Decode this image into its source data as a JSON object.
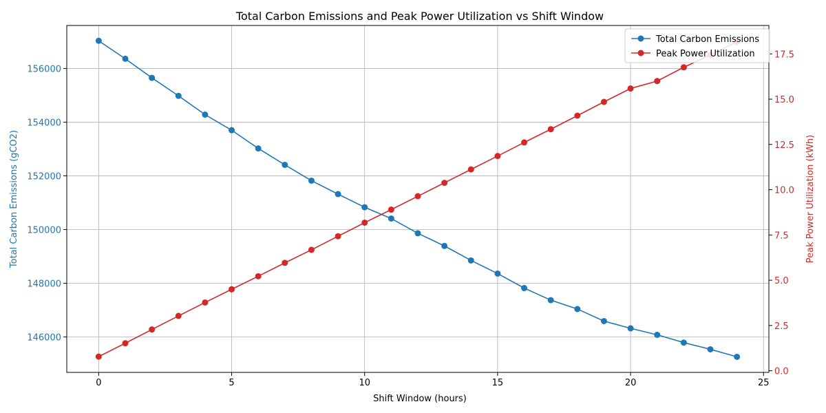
{
  "chart_data": {
    "type": "line",
    "title": "Total Carbon Emissions and Peak Power Utilization vs Shift Window",
    "xlabel": "Shift Window (hours)",
    "ylabel_left": "Total Carbon Emissions (gCO2)",
    "ylabel_right": "Peak Power Utilization (kWh)",
    "grid": true,
    "legend_position": "top-right",
    "x": [
      0,
      1,
      2,
      3,
      4,
      5,
      6,
      7,
      8,
      9,
      10,
      11,
      12,
      13,
      14,
      15,
      16,
      17,
      18,
      19,
      20,
      21,
      22,
      23,
      24
    ],
    "xlim": [
      -1.2,
      25.2
    ],
    "x_ticks": [
      0,
      5,
      10,
      15,
      20,
      25
    ],
    "x_tick_labels": [
      "0",
      "5",
      "10",
      "15",
      "20",
      "25"
    ],
    "ylim_left": [
      144680,
      157600
    ],
    "y_ticks_left": [
      146000,
      148000,
      150000,
      152000,
      154000,
      156000
    ],
    "y_tick_labels_left": [
      "146000",
      "148000",
      "150000",
      "152000",
      "154000",
      "156000"
    ],
    "ylim_right": [
      -0.09,
      19.07
    ],
    "y_ticks_right": [
      0.0,
      2.5,
      5.0,
      7.5,
      10.0,
      12.5,
      15.0,
      17.5
    ],
    "y_tick_labels_right": [
      "0.0",
      "2.5",
      "5.0",
      "7.5",
      "10.0",
      "12.5",
      "15.0",
      "17.5"
    ],
    "series": [
      {
        "name": "Total Carbon Emissions",
        "axis": "left",
        "color": "#1f77b4",
        "values": [
          157030,
          156360,
          155650,
          154980,
          154280,
          153700,
          153020,
          152410,
          151820,
          151320,
          150830,
          150410,
          149860,
          149390,
          148850,
          148360,
          147820,
          147370,
          147040,
          146590,
          146320,
          146080,
          145790,
          145540,
          145260
        ]
      },
      {
        "name": "Peak Power Utilization",
        "axis": "right",
        "color": "#d62728",
        "values": [
          0.78,
          1.52,
          2.28,
          3.03,
          3.77,
          4.5,
          5.22,
          5.96,
          6.68,
          7.43,
          8.18,
          8.9,
          9.64,
          10.38,
          11.12,
          11.86,
          12.61,
          13.34,
          14.09,
          14.85,
          15.59,
          16.0,
          16.76,
          17.44,
          18.17
        ]
      }
    ]
  }
}
